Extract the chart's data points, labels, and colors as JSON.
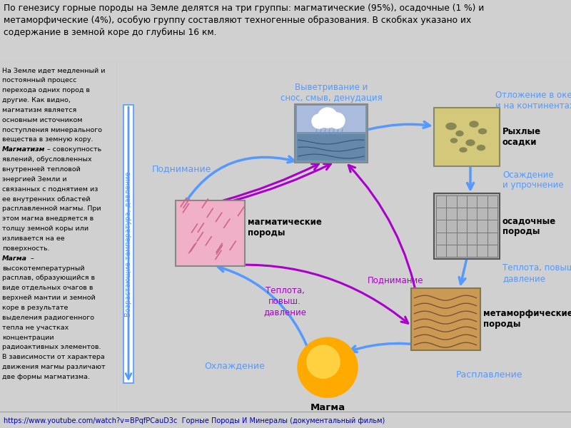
{
  "title_text": "По генезису горные породы на Земле делятся на три группы: магматические (95%), осадочные (1 %) и\nметаморфические (4%), особую группу составляют техногенные образования. В скобках указано их\nсодержание в земной коре до глубины 16 км.",
  "left_text_lines": [
    "На Земле идет медленный и",
    "постоянный процесс",
    "перехода одних пород в",
    "другие. Как видно,",
    "магматизм является",
    "основным источником",
    "поступления минерального",
    "вещества в земную кору.",
    "Магматизм – совокупность",
    "явлений, обусловленных",
    "внутренней тепловой",
    "энергией Земли и",
    "связанных с поднятием из",
    "ее внутренних областей",
    "расплавленной магмы. При",
    "этом магма внедряется в",
    "толщу земной коры или",
    "изливается на ее",
    "поверхность.",
    "Магма –",
    "высокотемпературный",
    "расплав, образующийся в",
    "виде отдельных очагов в",
    "верхней мантии и земной",
    "коре в результате",
    "выделения радиогенного",
    "тепла не участках",
    "концентрации",
    "радиоактивных элементов.",
    "В зависимости от характера",
    "движения магмы различают",
    "две формы магматизма."
  ],
  "footer_text": "https://www.youtube.com/watch?v=BPqfPCauD3c  Горные Породы И Минералы (документальный фильм)",
  "bg_color": "#d0d0d0",
  "arrow_blue": "#5599ff",
  "arrow_purple": "#aa00cc",
  "left_bar_text": "Возрастающие температура, давление",
  "title_bg": "#f0f0f0",
  "left_panel_bg": "#e8e8e8",
  "footer_bg": "#ffffff"
}
